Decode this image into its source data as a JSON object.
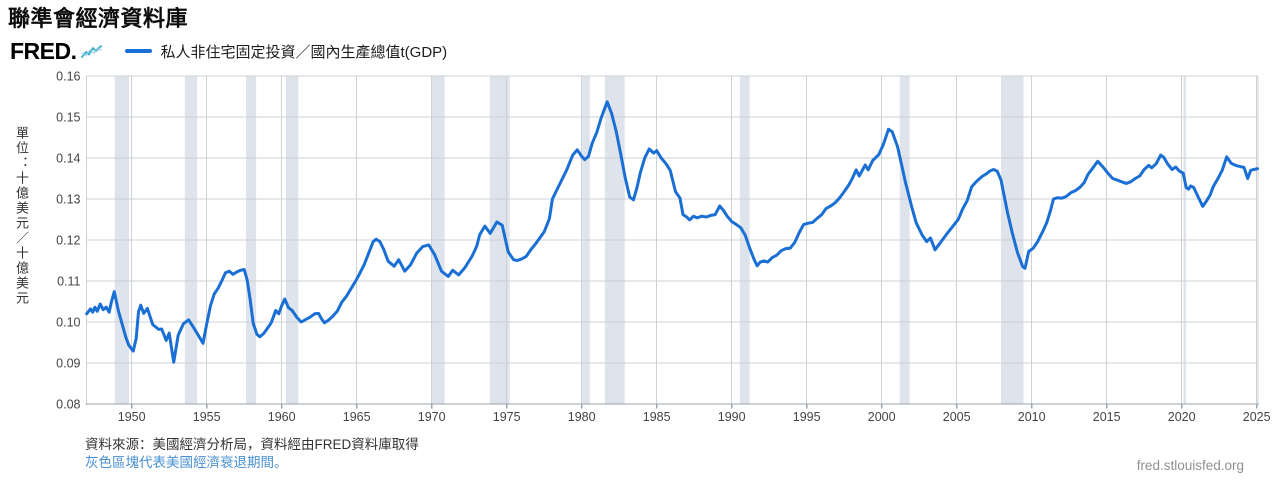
{
  "page": {
    "title": "聯準會經濟資料庫",
    "brand_label": "FRED.",
    "watermark": "fred.stlouisfed.org"
  },
  "legend": {
    "series_label": "私人非住宅固定投資／國內生產總值t(GDP)",
    "series_color": "#1a6fd5"
  },
  "y_axis_unit": "單位：十億美元／十億美元",
  "footer": {
    "source_line": "資料來源：美國經濟分析局，資料經由FRED資料庫取得",
    "recession_note": "灰色區塊代表美國經濟衰退期間。",
    "note_color": "#4a90d2"
  },
  "chart_data": {
    "type": "line",
    "title": "私人非住宅固定投資／國內生產總值 (GDP)",
    "xlabel": "",
    "ylabel": "單位：十億美元／十億美元",
    "xlim": [
      1947,
      2025.1
    ],
    "ylim": [
      0.08,
      0.16
    ],
    "grid": true,
    "x_ticks": [
      1950,
      1955,
      1960,
      1965,
      1970,
      1975,
      1980,
      1985,
      1990,
      1995,
      2000,
      2005,
      2010,
      2015,
      2020,
      2025
    ],
    "y_ticks": [
      0.08,
      0.09,
      0.1,
      0.11,
      0.12,
      0.13,
      0.14,
      0.15,
      0.16
    ],
    "line_color": "#1a6fd5",
    "grid_color": "#ccd1d6",
    "axis_color": "#9aa3ac",
    "tick_label_color": "#444444",
    "recession_color": "#dfe3eb",
    "recession_bands": [
      [
        1948.87,
        1949.83
      ],
      [
        1953.54,
        1954.37
      ],
      [
        1957.62,
        1958.29
      ],
      [
        1960.29,
        1961.12
      ],
      [
        1969.96,
        1970.87
      ],
      [
        1973.87,
        1975.2
      ],
      [
        1980.04,
        1980.54
      ],
      [
        1981.54,
        1982.87
      ],
      [
        1990.54,
        1991.2
      ],
      [
        2001.2,
        2001.87
      ],
      [
        2007.95,
        2009.45
      ],
      [
        2020.12,
        2020.29
      ]
    ],
    "series": [
      {
        "name": "私人非住宅固定投資／國內生產總值t(GDP)",
        "points": [
          [
            1947.0,
            0.102
          ],
          [
            1947.25,
            0.1032
          ],
          [
            1947.4,
            0.1024
          ],
          [
            1947.55,
            0.1036
          ],
          [
            1947.7,
            0.1026
          ],
          [
            1947.9,
            0.1044
          ],
          [
            1948.1,
            0.103
          ],
          [
            1948.3,
            0.1036
          ],
          [
            1948.5,
            0.1024
          ],
          [
            1948.65,
            0.105
          ],
          [
            1948.84,
            0.1074
          ],
          [
            1949.1,
            0.1029
          ],
          [
            1949.35,
            0.0997
          ],
          [
            1949.6,
            0.0964
          ],
          [
            1949.8,
            0.0944
          ],
          [
            1950.1,
            0.0929
          ],
          [
            1950.3,
            0.096
          ],
          [
            1950.45,
            0.1025
          ],
          [
            1950.6,
            0.1041
          ],
          [
            1950.8,
            0.1021
          ],
          [
            1951.05,
            0.1033
          ],
          [
            1951.4,
            0.0994
          ],
          [
            1951.8,
            0.0982
          ],
          [
            1952.0,
            0.0983
          ],
          [
            1952.3,
            0.0955
          ],
          [
            1952.5,
            0.0973
          ],
          [
            1952.8,
            0.0902
          ],
          [
            1953.1,
            0.0968
          ],
          [
            1953.45,
            0.0996
          ],
          [
            1953.8,
            0.1005
          ],
          [
            1954.1,
            0.0988
          ],
          [
            1954.4,
            0.097
          ],
          [
            1954.75,
            0.0948
          ],
          [
            1955.0,
            0.0995
          ],
          [
            1955.25,
            0.104
          ],
          [
            1955.5,
            0.1068
          ],
          [
            1955.75,
            0.1082
          ],
          [
            1956.0,
            0.11
          ],
          [
            1956.25,
            0.112
          ],
          [
            1956.5,
            0.1124
          ],
          [
            1956.75,
            0.1116
          ],
          [
            1957.0,
            0.1122
          ],
          [
            1957.25,
            0.1126
          ],
          [
            1957.5,
            0.1128
          ],
          [
            1957.7,
            0.1102
          ],
          [
            1957.9,
            0.1054
          ],
          [
            1958.1,
            0.0997
          ],
          [
            1958.35,
            0.097
          ],
          [
            1958.55,
            0.0964
          ],
          [
            1958.8,
            0.0972
          ],
          [
            1959.0,
            0.0982
          ],
          [
            1959.3,
            0.0998
          ],
          [
            1959.6,
            0.1028
          ],
          [
            1959.8,
            0.102
          ],
          [
            1960.0,
            0.104
          ],
          [
            1960.2,
            0.1056
          ],
          [
            1960.45,
            0.1035
          ],
          [
            1960.7,
            0.1028
          ],
          [
            1961.0,
            0.1012
          ],
          [
            1961.3,
            0.1
          ],
          [
            1961.6,
            0.1006
          ],
          [
            1961.9,
            0.1012
          ],
          [
            1962.2,
            0.102
          ],
          [
            1962.45,
            0.1021
          ],
          [
            1962.65,
            0.1008
          ],
          [
            1962.85,
            0.0998
          ],
          [
            1963.1,
            0.1004
          ],
          [
            1963.4,
            0.1014
          ],
          [
            1963.7,
            0.1026
          ],
          [
            1964.0,
            0.1048
          ],
          [
            1964.3,
            0.1062
          ],
          [
            1964.6,
            0.108
          ],
          [
            1964.9,
            0.1098
          ],
          [
            1965.2,
            0.1118
          ],
          [
            1965.5,
            0.114
          ],
          [
            1965.8,
            0.1168
          ],
          [
            1966.1,
            0.1196
          ],
          [
            1966.3,
            0.1202
          ],
          [
            1966.55,
            0.1196
          ],
          [
            1966.8,
            0.1177
          ],
          [
            1967.1,
            0.1148
          ],
          [
            1967.5,
            0.1136
          ],
          [
            1967.8,
            0.1152
          ],
          [
            1968.2,
            0.1124
          ],
          [
            1968.6,
            0.114
          ],
          [
            1969.0,
            0.1168
          ],
          [
            1969.4,
            0.1184
          ],
          [
            1969.8,
            0.1188
          ],
          [
            1970.2,
            0.1164
          ],
          [
            1970.65,
            0.1124
          ],
          [
            1971.1,
            0.1111
          ],
          [
            1971.4,
            0.1126
          ],
          [
            1971.8,
            0.1115
          ],
          [
            1972.2,
            0.1132
          ],
          [
            1972.7,
            0.1161
          ],
          [
            1973.0,
            0.1185
          ],
          [
            1973.2,
            0.1213
          ],
          [
            1973.55,
            0.1234
          ],
          [
            1973.9,
            0.1216
          ],
          [
            1974.35,
            0.1244
          ],
          [
            1974.7,
            0.1236
          ],
          [
            1975.1,
            0.1171
          ],
          [
            1975.45,
            0.1152
          ],
          [
            1975.7,
            0.115
          ],
          [
            1976.0,
            0.1154
          ],
          [
            1976.3,
            0.116
          ],
          [
            1976.6,
            0.1176
          ],
          [
            1976.95,
            0.1192
          ],
          [
            1977.5,
            0.122
          ],
          [
            1977.85,
            0.1252
          ],
          [
            1978.05,
            0.13
          ],
          [
            1978.5,
            0.1334
          ],
          [
            1979.0,
            0.1371
          ],
          [
            1979.4,
            0.1407
          ],
          [
            1979.7,
            0.142
          ],
          [
            1980.0,
            0.1404
          ],
          [
            1980.2,
            0.1396
          ],
          [
            1980.45,
            0.1404
          ],
          [
            1980.7,
            0.1436
          ],
          [
            1981.0,
            0.1462
          ],
          [
            1981.3,
            0.1498
          ],
          [
            1981.7,
            0.1537
          ],
          [
            1982.0,
            0.1508
          ],
          [
            1982.3,
            0.1465
          ],
          [
            1982.6,
            0.141
          ],
          [
            1982.9,
            0.1352
          ],
          [
            1983.2,
            0.1305
          ],
          [
            1983.45,
            0.1298
          ],
          [
            1983.7,
            0.133
          ],
          [
            1983.9,
            0.1363
          ],
          [
            1984.2,
            0.14
          ],
          [
            1984.5,
            0.1422
          ],
          [
            1984.8,
            0.1412
          ],
          [
            1985.0,
            0.1418
          ],
          [
            1985.3,
            0.14
          ],
          [
            1985.6,
            0.1387
          ],
          [
            1985.9,
            0.137
          ],
          [
            1986.25,
            0.1318
          ],
          [
            1986.55,
            0.1302
          ],
          [
            1986.75,
            0.1262
          ],
          [
            1987.0,
            0.1256
          ],
          [
            1987.2,
            0.1249
          ],
          [
            1987.45,
            0.1258
          ],
          [
            1987.7,
            0.1254
          ],
          [
            1988.0,
            0.1258
          ],
          [
            1988.3,
            0.1256
          ],
          [
            1988.6,
            0.126
          ],
          [
            1988.9,
            0.1262
          ],
          [
            1989.2,
            0.1283
          ],
          [
            1989.45,
            0.1272
          ],
          [
            1989.7,
            0.1258
          ],
          [
            1990.0,
            0.1245
          ],
          [
            1990.3,
            0.1238
          ],
          [
            1990.6,
            0.123
          ],
          [
            1990.9,
            0.1212
          ],
          [
            1991.2,
            0.118
          ],
          [
            1991.5,
            0.1152
          ],
          [
            1991.7,
            0.1137
          ],
          [
            1991.9,
            0.1146
          ],
          [
            1992.15,
            0.1149
          ],
          [
            1992.4,
            0.1146
          ],
          [
            1992.7,
            0.1157
          ],
          [
            1993.0,
            0.1163
          ],
          [
            1993.3,
            0.1174
          ],
          [
            1993.6,
            0.1179
          ],
          [
            1993.9,
            0.118
          ],
          [
            1994.2,
            0.1194
          ],
          [
            1994.5,
            0.1218
          ],
          [
            1994.8,
            0.1238
          ],
          [
            1995.1,
            0.1241
          ],
          [
            1995.4,
            0.1243
          ],
          [
            1995.7,
            0.1253
          ],
          [
            1996.0,
            0.1262
          ],
          [
            1996.3,
            0.1277
          ],
          [
            1996.6,
            0.1283
          ],
          [
            1996.9,
            0.1291
          ],
          [
            1997.2,
            0.1303
          ],
          [
            1997.5,
            0.1318
          ],
          [
            1997.8,
            0.1334
          ],
          [
            1998.0,
            0.1347
          ],
          [
            1998.3,
            0.1371
          ],
          [
            1998.5,
            0.1356
          ],
          [
            1998.9,
            0.1383
          ],
          [
            1999.1,
            0.1371
          ],
          [
            1999.4,
            0.1394
          ],
          [
            1999.8,
            0.1408
          ],
          [
            2000.1,
            0.1432
          ],
          [
            2000.45,
            0.147
          ],
          [
            2000.7,
            0.1464
          ],
          [
            2001.05,
            0.1428
          ],
          [
            2001.3,
            0.1388
          ],
          [
            2001.6,
            0.1338
          ],
          [
            2002.0,
            0.1281
          ],
          [
            2002.3,
            0.1242
          ],
          [
            2002.7,
            0.1212
          ],
          [
            2003.0,
            0.1196
          ],
          [
            2003.25,
            0.1205
          ],
          [
            2003.55,
            0.1176
          ],
          [
            2003.9,
            0.1193
          ],
          [
            2004.3,
            0.1213
          ],
          [
            2004.75,
            0.1234
          ],
          [
            2005.1,
            0.125
          ],
          [
            2005.4,
            0.1276
          ],
          [
            2005.7,
            0.1296
          ],
          [
            2006.0,
            0.133
          ],
          [
            2006.35,
            0.1344
          ],
          [
            2006.7,
            0.1355
          ],
          [
            2007.0,
            0.1362
          ],
          [
            2007.2,
            0.1368
          ],
          [
            2007.45,
            0.1372
          ],
          [
            2007.7,
            0.1368
          ],
          [
            2007.95,
            0.1346
          ],
          [
            2008.4,
            0.1265
          ],
          [
            2008.7,
            0.1218
          ],
          [
            2009.05,
            0.1169
          ],
          [
            2009.4,
            0.1135
          ],
          [
            2009.55,
            0.1131
          ],
          [
            2009.8,
            0.1172
          ],
          [
            2010.1,
            0.118
          ],
          [
            2010.4,
            0.1196
          ],
          [
            2010.7,
            0.1218
          ],
          [
            2011.0,
            0.1242
          ],
          [
            2011.25,
            0.1272
          ],
          [
            2011.45,
            0.13
          ],
          [
            2011.7,
            0.1303
          ],
          [
            2012.0,
            0.1302
          ],
          [
            2012.3,
            0.1306
          ],
          [
            2012.6,
            0.1315
          ],
          [
            2012.9,
            0.132
          ],
          [
            2013.2,
            0.1328
          ],
          [
            2013.5,
            0.134
          ],
          [
            2013.75,
            0.136
          ],
          [
            2014.0,
            0.1372
          ],
          [
            2014.4,
            0.1392
          ],
          [
            2014.75,
            0.1378
          ],
          [
            2015.1,
            0.1362
          ],
          [
            2015.4,
            0.135
          ],
          [
            2015.7,
            0.1346
          ],
          [
            2016.0,
            0.1342
          ],
          [
            2016.3,
            0.1338
          ],
          [
            2016.6,
            0.1342
          ],
          [
            2016.9,
            0.135
          ],
          [
            2017.2,
            0.1356
          ],
          [
            2017.5,
            0.1372
          ],
          [
            2017.8,
            0.1382
          ],
          [
            2018.0,
            0.1376
          ],
          [
            2018.3,
            0.1386
          ],
          [
            2018.6,
            0.1407
          ],
          [
            2018.8,
            0.1402
          ],
          [
            2019.05,
            0.1386
          ],
          [
            2019.35,
            0.1372
          ],
          [
            2019.6,
            0.1378
          ],
          [
            2019.85,
            0.1368
          ],
          [
            2020.1,
            0.1363
          ],
          [
            2020.3,
            0.1328
          ],
          [
            2020.45,
            0.1324
          ],
          [
            2020.6,
            0.1332
          ],
          [
            2020.8,
            0.1328
          ],
          [
            2021.1,
            0.1305
          ],
          [
            2021.4,
            0.1282
          ],
          [
            2021.65,
            0.1295
          ],
          [
            2021.9,
            0.131
          ],
          [
            2022.1,
            0.133
          ],
          [
            2022.4,
            0.1349
          ],
          [
            2022.7,
            0.137
          ],
          [
            2023.0,
            0.1403
          ],
          [
            2023.3,
            0.1387
          ],
          [
            2023.6,
            0.1382
          ],
          [
            2023.9,
            0.1379
          ],
          [
            2024.15,
            0.1377
          ],
          [
            2024.4,
            0.135
          ],
          [
            2024.6,
            0.137
          ],
          [
            2024.8,
            0.1372
          ],
          [
            2025.05,
            0.1374
          ]
        ]
      }
    ],
    "legend_position": "top"
  }
}
